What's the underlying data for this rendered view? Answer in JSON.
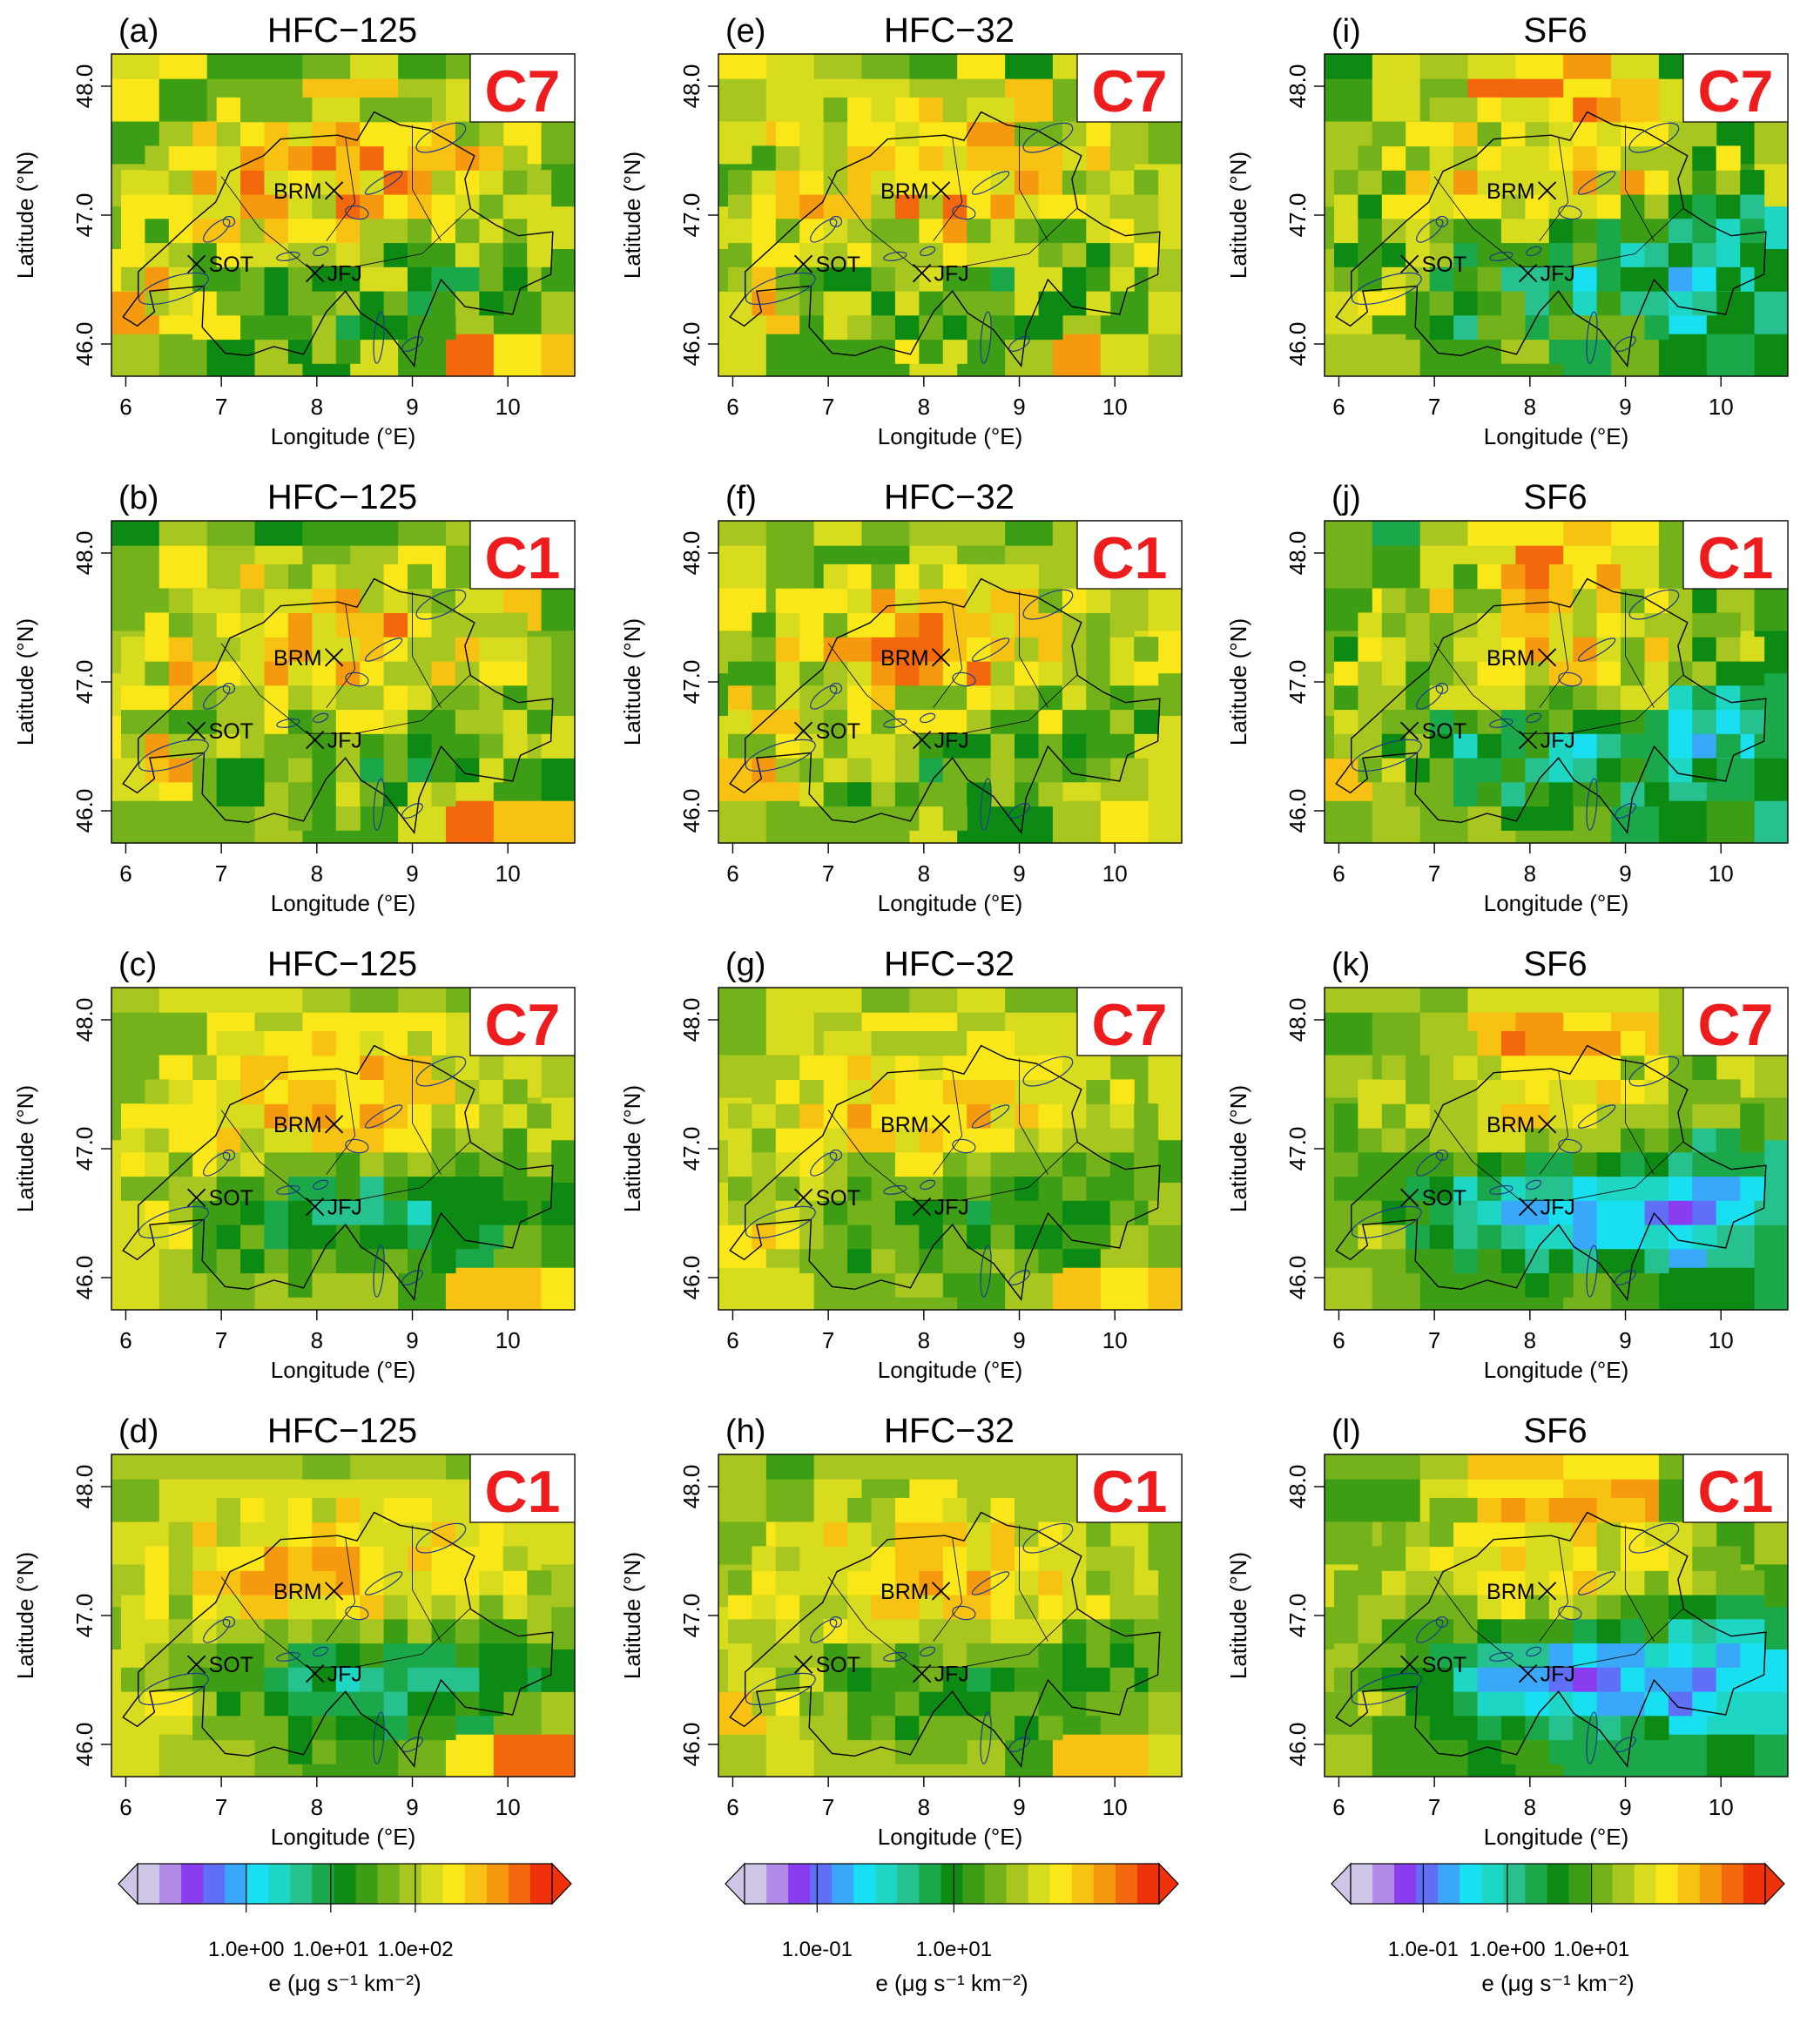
{
  "figure": {
    "colormap": [
      "#cfc5e6",
      "#b18ae8",
      "#8a3cf0",
      "#5f6ff6",
      "#3aa8f8",
      "#19e0f0",
      "#1dd6c4",
      "#27c08f",
      "#1aa84a",
      "#0c8a14",
      "#3d9e15",
      "#73b21a",
      "#a7c61f",
      "#d8dc1f",
      "#fae71a",
      "#f8c212",
      "#f59a0e",
      "#f3670d",
      "#f0320b"
    ],
    "labels": {
      "x_axis": "Longitude (°E)",
      "y_axis": "Latitude (°N)",
      "legend_unit": "e (μg s⁻¹ km⁻²)"
    },
    "stations": [
      {
        "name": "BRM",
        "lon": 8.18,
        "lat": 47.19
      },
      {
        "name": "SOT",
        "lon": 6.74,
        "lat": 46.62
      },
      {
        "name": "JFJ",
        "lon": 7.98,
        "lat": 46.55
      }
    ],
    "colorbars": [
      {
        "column": 0,
        "ticks": [
          "1.0e+00",
          "1.0e+01",
          "1.0e+02"
        ]
      },
      {
        "column": 1,
        "ticks": [
          "1.0e-01",
          "1.0e+01"
        ]
      },
      {
        "column": 2,
        "ticks": [
          "1.0e-01",
          "1.0e+00",
          "1.0e+01"
        ]
      }
    ]
  },
  "chart_data": [
    {
      "type": "heatmap",
      "panel": "(a)",
      "title": "HFC−125",
      "config": "C7",
      "xlim": [
        5.85,
        10.7
      ],
      "ylim": [
        45.75,
        48.25
      ],
      "xticks": [
        6,
        7,
        8,
        9,
        10
      ],
      "yticks": [
        46.0,
        47.0,
        48.0
      ],
      "xlabel": "Longitude (°E)",
      "ylabel": "Latitude (°N)",
      "gas": "HFC-125"
    },
    {
      "type": "heatmap",
      "panel": "(b)",
      "title": "HFC−125",
      "config": "C1",
      "xlim": [
        5.85,
        10.7
      ],
      "ylim": [
        45.75,
        48.25
      ],
      "xticks": [
        6,
        7,
        8,
        9,
        10
      ],
      "yticks": [
        46.0,
        47.0,
        48.0
      ],
      "xlabel": "Longitude (°E)",
      "ylabel": "Latitude (°N)",
      "gas": "HFC-125"
    },
    {
      "type": "heatmap",
      "panel": "(c)",
      "title": "HFC−125",
      "config": "C7",
      "xlim": [
        5.85,
        10.7
      ],
      "ylim": [
        45.75,
        48.25
      ],
      "xticks": [
        6,
        7,
        8,
        9,
        10
      ],
      "yticks": [
        46.0,
        47.0,
        48.0
      ],
      "xlabel": "Longitude (°E)",
      "ylabel": "Latitude (°N)",
      "gas": "HFC-125"
    },
    {
      "type": "heatmap",
      "panel": "(d)",
      "title": "HFC−125",
      "config": "C1",
      "xlim": [
        5.85,
        10.7
      ],
      "ylim": [
        45.75,
        48.25
      ],
      "xticks": [
        6,
        7,
        8,
        9,
        10
      ],
      "yticks": [
        46.0,
        47.0,
        48.0
      ],
      "xlabel": "Longitude (°E)",
      "ylabel": "Latitude (°N)",
      "gas": "HFC-125"
    },
    {
      "type": "heatmap",
      "panel": "(e)",
      "title": "HFC−32",
      "config": "C7",
      "xlim": [
        5.85,
        10.7
      ],
      "ylim": [
        45.75,
        48.25
      ],
      "xticks": [
        6,
        7,
        8,
        9,
        10
      ],
      "yticks": [
        46.0,
        47.0,
        48.0
      ],
      "xlabel": "Longitude (°E)",
      "ylabel": "Latitude (°N)",
      "gas": "HFC-32"
    },
    {
      "type": "heatmap",
      "panel": "(f)",
      "title": "HFC−32",
      "config": "C1",
      "xlim": [
        5.85,
        10.7
      ],
      "ylim": [
        45.75,
        48.25
      ],
      "xticks": [
        6,
        7,
        8,
        9,
        10
      ],
      "yticks": [
        46.0,
        47.0,
        48.0
      ],
      "xlabel": "Longitude (°E)",
      "ylabel": "Latitude (°N)",
      "gas": "HFC-32"
    },
    {
      "type": "heatmap",
      "panel": "(g)",
      "title": "HFC−32",
      "config": "C7",
      "xlim": [
        5.85,
        10.7
      ],
      "ylim": [
        45.75,
        48.25
      ],
      "xticks": [
        6,
        7,
        8,
        9,
        10
      ],
      "yticks": [
        46.0,
        47.0,
        48.0
      ],
      "xlabel": "Longitude (°E)",
      "ylabel": "Latitude (°N)",
      "gas": "HFC-32"
    },
    {
      "type": "heatmap",
      "panel": "(h)",
      "title": "HFC−32",
      "config": "C1",
      "xlim": [
        5.85,
        10.7
      ],
      "ylim": [
        45.75,
        48.25
      ],
      "xticks": [
        6,
        7,
        8,
        9,
        10
      ],
      "yticks": [
        46.0,
        47.0,
        48.0
      ],
      "xlabel": "Longitude (°E)",
      "ylabel": "Latitude (°N)",
      "gas": "HFC-32"
    },
    {
      "type": "heatmap",
      "panel": "(i)",
      "title": "SF6",
      "config": "C7",
      "xlim": [
        5.85,
        10.7
      ],
      "ylim": [
        45.75,
        48.25
      ],
      "xticks": [
        6,
        7,
        8,
        9,
        10
      ],
      "yticks": [
        46.0,
        47.0,
        48.0
      ],
      "xlabel": "Longitude (°E)",
      "ylabel": "Latitude (°N)",
      "gas": "SF6"
    },
    {
      "type": "heatmap",
      "panel": "(j)",
      "title": "SF6",
      "config": "C1",
      "xlim": [
        5.85,
        10.7
      ],
      "ylim": [
        45.75,
        48.25
      ],
      "xticks": [
        6,
        7,
        8,
        9,
        10
      ],
      "yticks": [
        46.0,
        47.0,
        48.0
      ],
      "xlabel": "Longitude (°E)",
      "ylabel": "Latitude (°N)",
      "gas": "SF6"
    },
    {
      "type": "heatmap",
      "panel": "(k)",
      "title": "SF6",
      "config": "C7",
      "xlim": [
        5.85,
        10.7
      ],
      "ylim": [
        45.75,
        48.25
      ],
      "xticks": [
        6,
        7,
        8,
        9,
        10
      ],
      "yticks": [
        46.0,
        47.0,
        48.0
      ],
      "xlabel": "Longitude (°E)",
      "ylabel": "Latitude (°N)",
      "gas": "SF6"
    },
    {
      "type": "heatmap",
      "panel": "(l)",
      "title": "SF6",
      "config": "C1",
      "xlim": [
        5.85,
        10.7
      ],
      "ylim": [
        45.75,
        48.25
      ],
      "xticks": [
        6,
        7,
        8,
        9,
        10
      ],
      "yticks": [
        46.0,
        47.0,
        48.0
      ],
      "xlabel": "Longitude (°E)",
      "ylabel": "Latitude (°N)",
      "gas": "SF6"
    }
  ]
}
